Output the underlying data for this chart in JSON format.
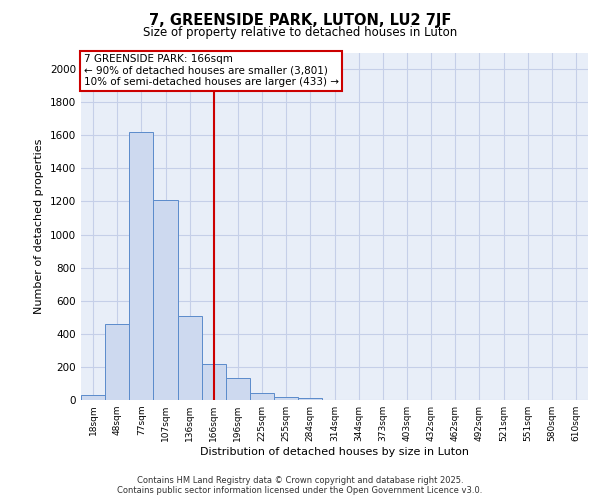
{
  "title1": "7, GREENSIDE PARK, LUTON, LU2 7JF",
  "title2": "Size of property relative to detached houses in Luton",
  "xlabel": "Distribution of detached houses by size in Luton",
  "ylabel": "Number of detached properties",
  "categories": [
    "18sqm",
    "48sqm",
    "77sqm",
    "107sqm",
    "136sqm",
    "166sqm",
    "196sqm",
    "225sqm",
    "255sqm",
    "284sqm",
    "314sqm",
    "344sqm",
    "373sqm",
    "403sqm",
    "432sqm",
    "462sqm",
    "492sqm",
    "521sqm",
    "551sqm",
    "580sqm",
    "610sqm"
  ],
  "values": [
    30,
    460,
    1620,
    1210,
    510,
    220,
    130,
    40,
    20,
    15,
    0,
    0,
    0,
    0,
    0,
    0,
    0,
    0,
    0,
    0,
    0
  ],
  "bar_color": "#cdd9ef",
  "bar_edge_color": "#5b8bcb",
  "vline_color": "#cc0000",
  "annotation_text": "7 GREENSIDE PARK: 166sqm\n← 90% of detached houses are smaller (3,801)\n10% of semi-detached houses are larger (433) →",
  "annotation_box_color": "#ffffff",
  "annotation_box_edge": "#cc0000",
  "ylim": [
    0,
    2100
  ],
  "yticks": [
    0,
    200,
    400,
    600,
    800,
    1000,
    1200,
    1400,
    1600,
    1800,
    2000
  ],
  "grid_color": "#c5cfe8",
  "bg_color": "#e8eef8",
  "footer1": "Contains HM Land Registry data © Crown copyright and database right 2025.",
  "footer2": "Contains public sector information licensed under the Open Government Licence v3.0."
}
